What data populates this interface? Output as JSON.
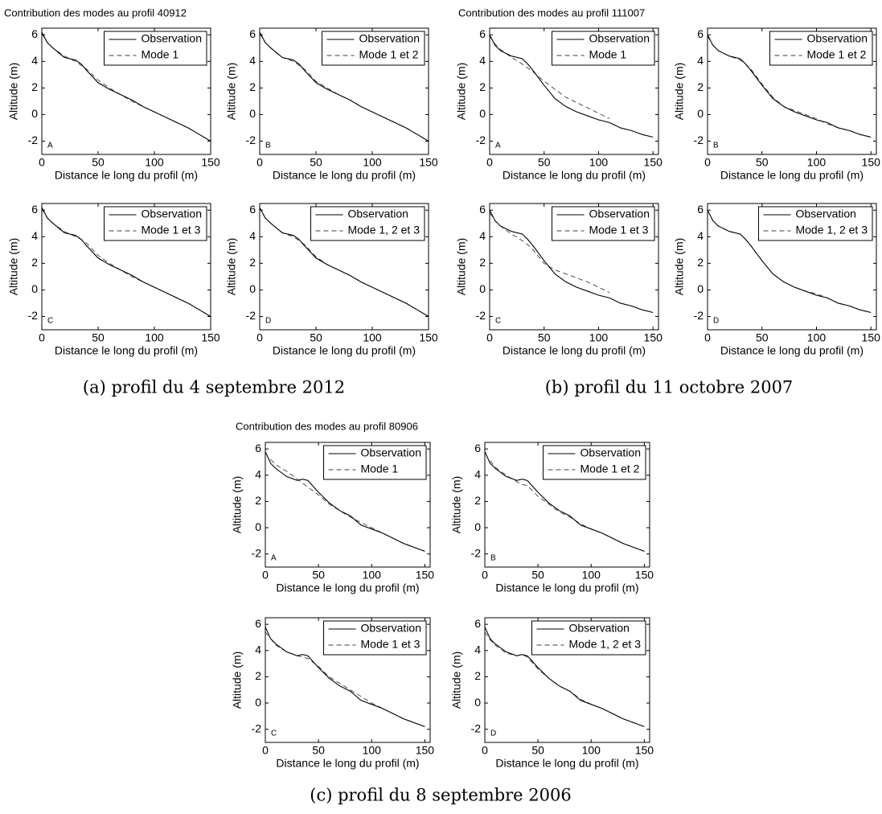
{
  "figures": [
    {
      "title": "Contribution des modes au profil 40912",
      "caption": "(a) profil du 4 septembre 2012"
    },
    {
      "title": "Contribution des modes au profil 111007",
      "caption": "(b) profil du 11 octobre 2007"
    },
    {
      "title": "Contribution des modes au profil 80906",
      "caption": "(c) profil du 8 septembre 2006"
    }
  ],
  "chart_data": [
    {
      "type": "line",
      "panel": "A",
      "xlabel": "Distance le long du profil (m)",
      "ylabel": "Altitude (m)",
      "legend": "upper right",
      "xlim": [
        0,
        150
      ],
      "ylim": [
        -3,
        6.5
      ],
      "xticks": [
        0,
        50,
        100,
        150
      ],
      "yticks": [
        -2,
        0,
        2,
        4,
        6
      ],
      "x": [
        0,
        5,
        10,
        20,
        30,
        35,
        40,
        50,
        60,
        70,
        80,
        90,
        100,
        110,
        120,
        130,
        140,
        150
      ],
      "series": [
        {
          "name": "Observation",
          "color": "#000000",
          "linestyle": "solid",
          "values": [
            6.2,
            5.4,
            5.0,
            4.3,
            4.1,
            3.8,
            3.3,
            2.4,
            1.9,
            1.5,
            1.1,
            0.6,
            0.2,
            -0.2,
            -0.6,
            -1.0,
            -1.5,
            -2.0
          ]
        },
        {
          "name": "Mode 1",
          "color": "#000000",
          "linestyle": "dashed",
          "values": [
            6.1,
            5.4,
            5.0,
            4.4,
            4.0,
            3.7,
            3.4,
            2.6,
            2.0,
            1.5,
            1.0,
            0.6,
            0.2,
            -0.2,
            -0.6,
            -1.0,
            -1.5,
            -2.0
          ]
        }
      ]
    },
    {
      "type": "line",
      "panel": "B",
      "xlabel": "Distance le long du profil (m)",
      "ylabel": "Altitude (m)",
      "legend": "upper right",
      "xlim": [
        0,
        150
      ],
      "ylim": [
        -3,
        6.5
      ],
      "xticks": [
        0,
        50,
        100,
        150
      ],
      "yticks": [
        -2,
        0,
        2,
        4,
        6
      ],
      "x": [
        0,
        5,
        10,
        20,
        30,
        35,
        40,
        50,
        60,
        70,
        80,
        90,
        100,
        110,
        120,
        130,
        140,
        150
      ],
      "series": [
        {
          "name": "Observation",
          "color": "#000000",
          "linestyle": "solid",
          "values": [
            6.2,
            5.4,
            5.0,
            4.3,
            4.1,
            3.8,
            3.3,
            2.4,
            1.9,
            1.5,
            1.1,
            0.6,
            0.2,
            -0.2,
            -0.6,
            -1.0,
            -1.5,
            -2.0
          ]
        },
        {
          "name": "Mode 1 et 2",
          "color": "#000000",
          "linestyle": "dashed",
          "values": [
            6.1,
            5.4,
            5.0,
            4.3,
            4.0,
            3.7,
            3.4,
            2.5,
            2.0,
            1.5,
            1.1,
            0.6,
            0.2,
            -0.2,
            -0.6,
            -1.0,
            -1.5,
            -2.0
          ]
        }
      ]
    },
    {
      "type": "line",
      "panel": "C",
      "xlabel": "Distance le long du profil (m)",
      "ylabel": "Altitude (m)",
      "legend": "upper right",
      "xlim": [
        0,
        150
      ],
      "ylim": [
        -3,
        6.5
      ],
      "xticks": [
        0,
        50,
        100,
        150
      ],
      "yticks": [
        -2,
        0,
        2,
        4,
        6
      ],
      "x": [
        0,
        5,
        10,
        20,
        30,
        35,
        40,
        50,
        60,
        70,
        80,
        90,
        100,
        110,
        120,
        130,
        140,
        150
      ],
      "series": [
        {
          "name": "Observation",
          "color": "#000000",
          "linestyle": "solid",
          "values": [
            6.2,
            5.4,
            5.0,
            4.3,
            4.1,
            3.8,
            3.3,
            2.4,
            1.9,
            1.5,
            1.1,
            0.6,
            0.2,
            -0.2,
            -0.6,
            -1.0,
            -1.5,
            -2.0
          ]
        },
        {
          "name": "Mode 1 et 3",
          "color": "#000000",
          "linestyle": "dashed",
          "values": [
            6.1,
            5.4,
            5.0,
            4.4,
            4.0,
            3.8,
            3.5,
            2.6,
            2.0,
            1.5,
            1.0,
            0.6,
            0.2,
            -0.2,
            -0.6,
            -1.0,
            -1.5,
            -2.0
          ]
        }
      ]
    },
    {
      "type": "line",
      "panel": "D",
      "xlabel": "Distance le long du profil (m)",
      "ylabel": "Altitude (m)",
      "legend": "upper right",
      "xlim": [
        0,
        150
      ],
      "ylim": [
        -3,
        6.5
      ],
      "xticks": [
        0,
        50,
        100,
        150
      ],
      "yticks": [
        -2,
        0,
        2,
        4,
        6
      ],
      "x": [
        0,
        5,
        10,
        20,
        30,
        35,
        40,
        50,
        60,
        70,
        80,
        90,
        100,
        110,
        120,
        130,
        140,
        150
      ],
      "series": [
        {
          "name": "Observation",
          "color": "#000000",
          "linestyle": "solid",
          "values": [
            6.2,
            5.4,
            5.0,
            4.3,
            4.1,
            3.8,
            3.3,
            2.4,
            1.9,
            1.5,
            1.1,
            0.6,
            0.2,
            -0.2,
            -0.6,
            -1.0,
            -1.5,
            -2.0
          ]
        },
        {
          "name": "Mode 1, 2 et 3",
          "color": "#000000",
          "linestyle": "dashed",
          "values": [
            6.2,
            5.4,
            5.0,
            4.3,
            4.0,
            3.7,
            3.4,
            2.5,
            1.9,
            1.5,
            1.1,
            0.6,
            0.2,
            -0.2,
            -0.6,
            -1.0,
            -1.5,
            -2.0
          ]
        }
      ]
    },
    {
      "type": "line",
      "panel": "A",
      "xlabel": "Distance le long du profil (m)",
      "ylabel": "Altitude (m)",
      "legend": "upper right",
      "xlim": [
        0,
        155
      ],
      "ylim": [
        -3,
        6.5
      ],
      "xticks": [
        0,
        50,
        100,
        150
      ],
      "yticks": [
        -2,
        0,
        2,
        4,
        6
      ],
      "x": [
        0,
        5,
        10,
        20,
        30,
        35,
        40,
        50,
        60,
        70,
        80,
        90,
        100,
        110,
        120,
        130,
        140,
        150
      ],
      "series": [
        {
          "name": "Observation",
          "color": "#000000",
          "linestyle": "solid",
          "values": [
            6.0,
            5.2,
            4.8,
            4.4,
            4.2,
            3.8,
            3.3,
            2.2,
            1.2,
            0.6,
            0.2,
            -0.1,
            -0.4,
            -0.6,
            -1.0,
            -1.2,
            -1.5,
            -1.7
          ]
        },
        {
          "name": "Mode 1",
          "color": "#000000",
          "linestyle": "dashed",
          "values": [
            5.9,
            5.3,
            4.9,
            4.3,
            3.8,
            3.5,
            3.2,
            2.5,
            1.9,
            1.3,
            0.9,
            0.5,
            0.1,
            -0.3,
            null,
            null,
            null,
            null
          ]
        }
      ]
    },
    {
      "type": "line",
      "panel": "B",
      "xlabel": "Distance le long du profil (m)",
      "ylabel": "Altitude (m)",
      "legend": "upper right",
      "xlim": [
        0,
        155
      ],
      "ylim": [
        -3,
        6.5
      ],
      "xticks": [
        0,
        50,
        100,
        150
      ],
      "yticks": [
        -2,
        0,
        2,
        4,
        6
      ],
      "x": [
        0,
        5,
        10,
        20,
        30,
        35,
        40,
        50,
        60,
        70,
        80,
        90,
        100,
        110,
        120,
        130,
        140,
        150
      ],
      "series": [
        {
          "name": "Observation",
          "color": "#000000",
          "linestyle": "solid",
          "values": [
            6.0,
            5.2,
            4.8,
            4.4,
            4.2,
            3.8,
            3.3,
            2.2,
            1.2,
            0.6,
            0.2,
            -0.1,
            -0.4,
            -0.6,
            -1.0,
            -1.2,
            -1.5,
            -1.7
          ]
        },
        {
          "name": "Mode 1 et 2",
          "color": "#000000",
          "linestyle": "dashed",
          "values": [
            5.9,
            5.2,
            4.8,
            4.4,
            4.1,
            3.8,
            3.4,
            2.3,
            1.3,
            0.6,
            0.3,
            0.0,
            -0.3,
            -0.7,
            -1.0,
            -1.2,
            -1.5,
            -1.7
          ]
        }
      ]
    },
    {
      "type": "line",
      "panel": "C",
      "xlabel": "Distance le long du profil (m)",
      "ylabel": "Altitude (m)",
      "legend": "upper right",
      "xlim": [
        0,
        155
      ],
      "ylim": [
        -3,
        6.5
      ],
      "xticks": [
        0,
        50,
        100,
        150
      ],
      "yticks": [
        -2,
        0,
        2,
        4,
        6
      ],
      "x": [
        0,
        5,
        10,
        20,
        30,
        35,
        40,
        50,
        60,
        70,
        80,
        90,
        100,
        110,
        120,
        130,
        140,
        150
      ],
      "series": [
        {
          "name": "Observation",
          "color": "#000000",
          "linestyle": "solid",
          "values": [
            6.0,
            5.2,
            4.8,
            4.4,
            4.2,
            3.8,
            3.3,
            2.2,
            1.2,
            0.6,
            0.2,
            -0.1,
            -0.4,
            -0.6,
            -1.0,
            -1.2,
            -1.5,
            -1.7
          ]
        },
        {
          "name": "Mode 1 et 3",
          "color": "#000000",
          "linestyle": "dashed",
          "values": [
            5.8,
            5.2,
            4.8,
            4.2,
            3.7,
            3.4,
            3.0,
            2.0,
            1.5,
            1.2,
            0.9,
            0.6,
            0.2,
            -0.2,
            null,
            null,
            null,
            null
          ]
        }
      ]
    },
    {
      "type": "line",
      "panel": "D",
      "xlabel": "Distance le long du profil (m)",
      "ylabel": "Altitude (m)",
      "legend": "upper right",
      "xlim": [
        0,
        155
      ],
      "ylim": [
        -3,
        6.5
      ],
      "xticks": [
        0,
        50,
        100,
        150
      ],
      "yticks": [
        -2,
        0,
        2,
        4,
        6
      ],
      "x": [
        0,
        5,
        10,
        20,
        30,
        35,
        40,
        50,
        60,
        70,
        80,
        90,
        100,
        110,
        120,
        130,
        140,
        150
      ],
      "series": [
        {
          "name": "Observation",
          "color": "#000000",
          "linestyle": "solid",
          "values": [
            6.0,
            5.2,
            4.8,
            4.4,
            4.2,
            3.8,
            3.3,
            2.2,
            1.2,
            0.6,
            0.2,
            -0.1,
            -0.4,
            -0.6,
            -1.0,
            -1.2,
            -1.5,
            -1.7
          ]
        },
        {
          "name": "Mode 1, 2 et 3",
          "color": "#000000",
          "linestyle": "dashed",
          "values": [
            6.0,
            5.2,
            4.8,
            4.4,
            4.2,
            3.8,
            3.3,
            2.2,
            1.2,
            0.6,
            0.2,
            -0.1,
            -0.3,
            -0.6,
            -1.0,
            -1.2,
            -1.5,
            -1.7
          ]
        }
      ]
    },
    {
      "type": "line",
      "panel": "A",
      "xlabel": "Distance le long du profil (m)",
      "ylabel": "Altitude (m)",
      "legend": "upper right",
      "xlim": [
        0,
        155
      ],
      "ylim": [
        -3,
        6.5
      ],
      "xticks": [
        0,
        50,
        100,
        150
      ],
      "yticks": [
        -2,
        0,
        2,
        4,
        6
      ],
      "x": [
        0,
        5,
        10,
        20,
        30,
        35,
        40,
        50,
        60,
        70,
        80,
        90,
        100,
        110,
        120,
        130,
        140,
        150
      ],
      "series": [
        {
          "name": "Observation",
          "color": "#000000",
          "linestyle": "solid",
          "values": [
            5.8,
            4.9,
            4.5,
            3.9,
            3.6,
            3.7,
            3.6,
            2.7,
            1.9,
            1.3,
            0.9,
            0.2,
            -0.1,
            -0.4,
            -0.8,
            -1.2,
            -1.5,
            -1.8
          ]
        },
        {
          "name": "Mode 1",
          "color": "#000000",
          "linestyle": "dashed",
          "values": [
            null,
            5.2,
            4.8,
            4.3,
            3.7,
            3.4,
            3.1,
            2.5,
            1.8,
            1.3,
            0.8,
            0.4,
            0.0,
            -0.4,
            -0.8,
            -1.2,
            -1.5,
            -1.8
          ]
        }
      ]
    },
    {
      "type": "line",
      "panel": "B",
      "xlabel": "Distance le long du profil (m)",
      "ylabel": "Altitude (m)",
      "legend": "upper right",
      "xlim": [
        0,
        155
      ],
      "ylim": [
        -3,
        6.5
      ],
      "xticks": [
        0,
        50,
        100,
        150
      ],
      "yticks": [
        -2,
        0,
        2,
        4,
        6
      ],
      "x": [
        0,
        5,
        10,
        20,
        30,
        35,
        40,
        50,
        60,
        70,
        80,
        90,
        100,
        110,
        120,
        130,
        140,
        150
      ],
      "series": [
        {
          "name": "Observation",
          "color": "#000000",
          "linestyle": "solid",
          "values": [
            5.8,
            4.9,
            4.5,
            3.9,
            3.6,
            3.7,
            3.6,
            2.7,
            1.9,
            1.3,
            0.9,
            0.2,
            -0.1,
            -0.4,
            -0.8,
            -1.2,
            -1.5,
            -1.8
          ]
        },
        {
          "name": "Mode 1 et 2",
          "color": "#000000",
          "linestyle": "dashed",
          "values": [
            null,
            5.1,
            4.6,
            4.0,
            3.5,
            3.3,
            3.2,
            2.4,
            1.8,
            1.2,
            0.8,
            0.3,
            -0.1,
            -0.4,
            -0.8,
            -1.2,
            -1.5,
            -1.8
          ]
        }
      ]
    },
    {
      "type": "line",
      "panel": "C",
      "xlabel": "Distance le long du profil (m)",
      "ylabel": "Altitude (m)",
      "legend": "upper right",
      "xlim": [
        0,
        155
      ],
      "ylim": [
        -3,
        6.5
      ],
      "xticks": [
        0,
        50,
        100,
        150
      ],
      "yticks": [
        -2,
        0,
        2,
        4,
        6
      ],
      "x": [
        0,
        5,
        10,
        20,
        30,
        35,
        40,
        50,
        60,
        70,
        80,
        90,
        100,
        110,
        120,
        130,
        140,
        150
      ],
      "series": [
        {
          "name": "Observation",
          "color": "#000000",
          "linestyle": "solid",
          "values": [
            5.8,
            4.9,
            4.5,
            3.9,
            3.6,
            3.7,
            3.6,
            2.7,
            1.9,
            1.3,
            0.9,
            0.2,
            -0.1,
            -0.4,
            -0.8,
            -1.2,
            -1.5,
            -1.8
          ]
        },
        {
          "name": "Mode 1 et 3",
          "color": "#000000",
          "linestyle": "dashed",
          "values": [
            5.4,
            4.9,
            4.4,
            3.9,
            3.6,
            3.5,
            3.4,
            2.8,
            2.0,
            1.5,
            1.0,
            0.5,
            0.0,
            -0.4,
            -0.8,
            -1.2,
            -1.5,
            -1.8
          ]
        }
      ]
    },
    {
      "type": "line",
      "panel": "D",
      "xlabel": "Distance le long du profil (m)",
      "ylabel": "Altitude (m)",
      "legend": "upper right",
      "xlim": [
        0,
        155
      ],
      "ylim": [
        -3,
        6.5
      ],
      "xticks": [
        0,
        50,
        100,
        150
      ],
      "yticks": [
        -2,
        0,
        2,
        4,
        6
      ],
      "x": [
        0,
        5,
        10,
        20,
        30,
        35,
        40,
        50,
        60,
        70,
        80,
        90,
        100,
        110,
        120,
        130,
        140,
        150
      ],
      "series": [
        {
          "name": "Observation",
          "color": "#000000",
          "linestyle": "solid",
          "values": [
            5.8,
            4.9,
            4.5,
            3.9,
            3.6,
            3.7,
            3.6,
            2.7,
            1.9,
            1.3,
            0.9,
            0.2,
            -0.1,
            -0.4,
            -0.8,
            -1.2,
            -1.5,
            -1.8
          ]
        },
        {
          "name": "Mode 1, 2 et 3",
          "color": "#000000",
          "linestyle": "dashed",
          "values": [
            5.4,
            4.8,
            4.4,
            3.8,
            3.6,
            3.7,
            3.5,
            2.6,
            1.9,
            1.3,
            0.9,
            0.3,
            -0.1,
            -0.4,
            -0.8,
            -1.2,
            -1.5,
            -1.8
          ]
        }
      ]
    }
  ]
}
